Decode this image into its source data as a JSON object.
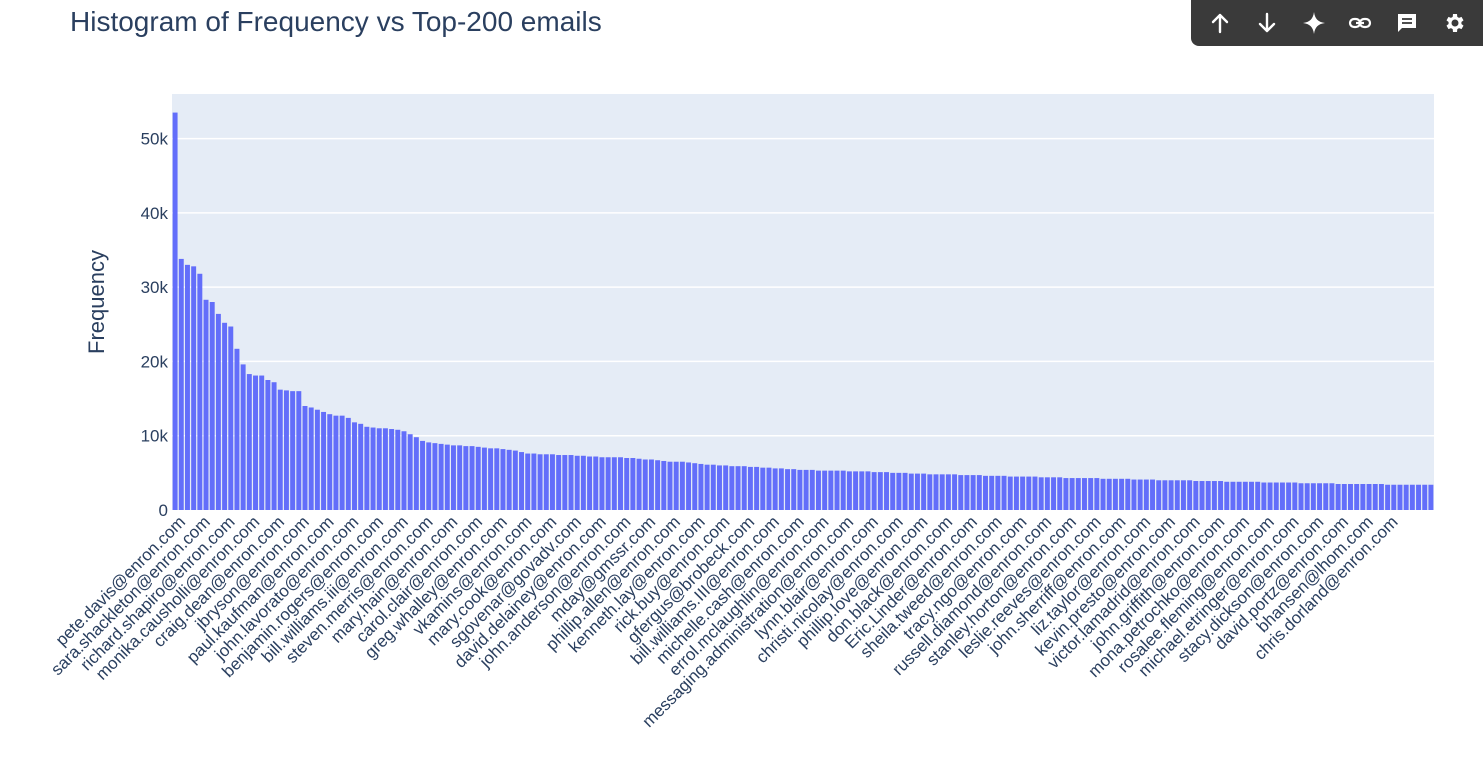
{
  "toolbar": {
    "buttons": [
      "arrow-up-icon",
      "arrow-down-icon",
      "sparkle-icon",
      "link-icon",
      "comment-icon",
      "gear-icon"
    ]
  },
  "colors": {
    "bar": "#636efa",
    "plot_bg": "#e5ecf6",
    "grid": "#ffffff",
    "text": "#2a3f5f",
    "toolbar_bg": "#3a3a3a"
  },
  "chart_data": {
    "type": "bar",
    "title": "Histogram of Frequency vs Top-200 emails",
    "xlabel": "",
    "ylabel": "Frequency",
    "ylim": [
      0,
      56000
    ],
    "yticks": [
      0,
      10000,
      20000,
      30000,
      40000,
      50000
    ],
    "ytick_labels": [
      "0",
      "10k",
      "20k",
      "30k",
      "40k",
      "50k"
    ],
    "grid": true,
    "num_bars": 200,
    "x_tick_labels": [
      {
        "index": 1,
        "label": "pete.davis@enron.com"
      },
      {
        "index": 5,
        "label": "sara.shackleton@enron.com"
      },
      {
        "index": 9,
        "label": "richard.shapiro@enron.com"
      },
      {
        "index": 13,
        "label": "monika.causholli@enron.com"
      },
      {
        "index": 17,
        "label": "craig.dean@enron.com"
      },
      {
        "index": 21,
        "label": "jbryson@enron.com"
      },
      {
        "index": 25,
        "label": "paul.kaufman@enron.com"
      },
      {
        "index": 29,
        "label": "john.lavorato@enron.com"
      },
      {
        "index": 33,
        "label": "benjamin.rogers@enron.com"
      },
      {
        "index": 37,
        "label": "bill.williams.iii@enron.com"
      },
      {
        "index": 41,
        "label": "steven.merris@enron.com"
      },
      {
        "index": 45,
        "label": "mary.hain@enron.com"
      },
      {
        "index": 49,
        "label": "carol.clair@enron.com"
      },
      {
        "index": 53,
        "label": "greg.whalley@enron.com"
      },
      {
        "index": 57,
        "label": "vkamins@enron.com"
      },
      {
        "index": 61,
        "label": "mary.cook@enron.com"
      },
      {
        "index": 65,
        "label": "sgovenar@govadv.com"
      },
      {
        "index": 69,
        "label": "david.delainey@enron.com"
      },
      {
        "index": 73,
        "label": "john.anderson@enron.com"
      },
      {
        "index": 77,
        "label": "mday@gmssr.com"
      },
      {
        "index": 81,
        "label": "phillip.allen@enron.com"
      },
      {
        "index": 85,
        "label": "kenneth.lay@enron.com"
      },
      {
        "index": 89,
        "label": "rick.buy@enron.com"
      },
      {
        "index": 93,
        "label": "gfergus@brobeck.com"
      },
      {
        "index": 97,
        "label": "bill.williams.III@enron.com"
      },
      {
        "index": 101,
        "label": "michelle.cash@enron.com"
      },
      {
        "index": 105,
        "label": "errol.mclaughlin@enron.com"
      },
      {
        "index": 109,
        "label": "messaging.administration@enron.com"
      },
      {
        "index": 113,
        "label": "lynn.blair@enron.com"
      },
      {
        "index": 117,
        "label": "christi.nicolay@enron.com"
      },
      {
        "index": 121,
        "label": "phillip.love@enron.com"
      },
      {
        "index": 125,
        "label": "don.black@enron.com"
      },
      {
        "index": 129,
        "label": "Eric.Linder@enron.com"
      },
      {
        "index": 133,
        "label": "sheila.tweed@enron.com"
      },
      {
        "index": 137,
        "label": "tracy.ngo@enron.com"
      },
      {
        "index": 141,
        "label": "russell.diamond@enron.com"
      },
      {
        "index": 145,
        "label": "stanley.horton@enron.com"
      },
      {
        "index": 149,
        "label": "leslie.reeves@enron.com"
      },
      {
        "index": 153,
        "label": "john.sherriff@enron.com"
      },
      {
        "index": 157,
        "label": "liz.taylor@enron.com"
      },
      {
        "index": 161,
        "label": "kevin.presto@enron.com"
      },
      {
        "index": 165,
        "label": "victor.lamadrid@enron.com"
      },
      {
        "index": 169,
        "label": "john.griffith@enron.com"
      },
      {
        "index": 173,
        "label": "mona.petrochko@enron.com"
      },
      {
        "index": 177,
        "label": "rosalee.fleming@enron.com"
      },
      {
        "index": 181,
        "label": "michael.etringer@enron.com"
      },
      {
        "index": 185,
        "label": "stacy.dickson@enron.com"
      },
      {
        "index": 189,
        "label": "david.portz@enron.com"
      },
      {
        "index": 193,
        "label": "bhansen@lhom.com"
      },
      {
        "index": 197,
        "label": "chris.dorland@enron.com"
      }
    ],
    "values": [
      53500,
      33800,
      33000,
      32800,
      31800,
      28300,
      28000,
      26400,
      25200,
      24700,
      21700,
      19600,
      18300,
      18100,
      18100,
      17500,
      17200,
      16200,
      16100,
      16000,
      16000,
      14000,
      13800,
      13500,
      13200,
      12900,
      12700,
      12700,
      12400,
      11800,
      11600,
      11200,
      11100,
      11000,
      11000,
      10900,
      10800,
      10600,
      10200,
      9800,
      9300,
      9100,
      9000,
      8900,
      8800,
      8700,
      8700,
      8600,
      8600,
      8500,
      8400,
      8300,
      8300,
      8200,
      8100,
      8000,
      7800,
      7600,
      7600,
      7500,
      7500,
      7500,
      7400,
      7400,
      7400,
      7300,
      7300,
      7200,
      7200,
      7100,
      7100,
      7100,
      7100,
      7000,
      7000,
      6900,
      6800,
      6800,
      6700,
      6600,
      6500,
      6500,
      6500,
      6400,
      6300,
      6200,
      6100,
      6100,
      6000,
      6000,
      5900,
      5900,
      5900,
      5800,
      5800,
      5700,
      5700,
      5600,
      5600,
      5500,
      5500,
      5400,
      5400,
      5400,
      5300,
      5300,
      5300,
      5300,
      5300,
      5200,
      5200,
      5200,
      5200,
      5100,
      5100,
      5100,
      5000,
      5000,
      5000,
      4900,
      4900,
      4900,
      4800,
      4800,
      4800,
      4800,
      4800,
      4700,
      4700,
      4700,
      4700,
      4600,
      4600,
      4600,
      4600,
      4500,
      4500,
      4500,
      4500,
      4500,
      4400,
      4400,
      4400,
      4400,
      4300,
      4300,
      4300,
      4300,
      4300,
      4300,
      4200,
      4200,
      4200,
      4200,
      4200,
      4100,
      4100,
      4100,
      4100,
      4000,
      4000,
      4000,
      4000,
      4000,
      4000,
      3900,
      3900,
      3900,
      3900,
      3900,
      3800,
      3800,
      3800,
      3800,
      3800,
      3800,
      3700,
      3700,
      3700,
      3700,
      3700,
      3700,
      3600,
      3600,
      3600,
      3600,
      3600,
      3600,
      3500,
      3500,
      3500,
      3500,
      3500,
      3500,
      3500,
      3500,
      3400,
      3400,
      3400,
      3400,
      3400,
      3400,
      3400,
      3400
    ]
  }
}
